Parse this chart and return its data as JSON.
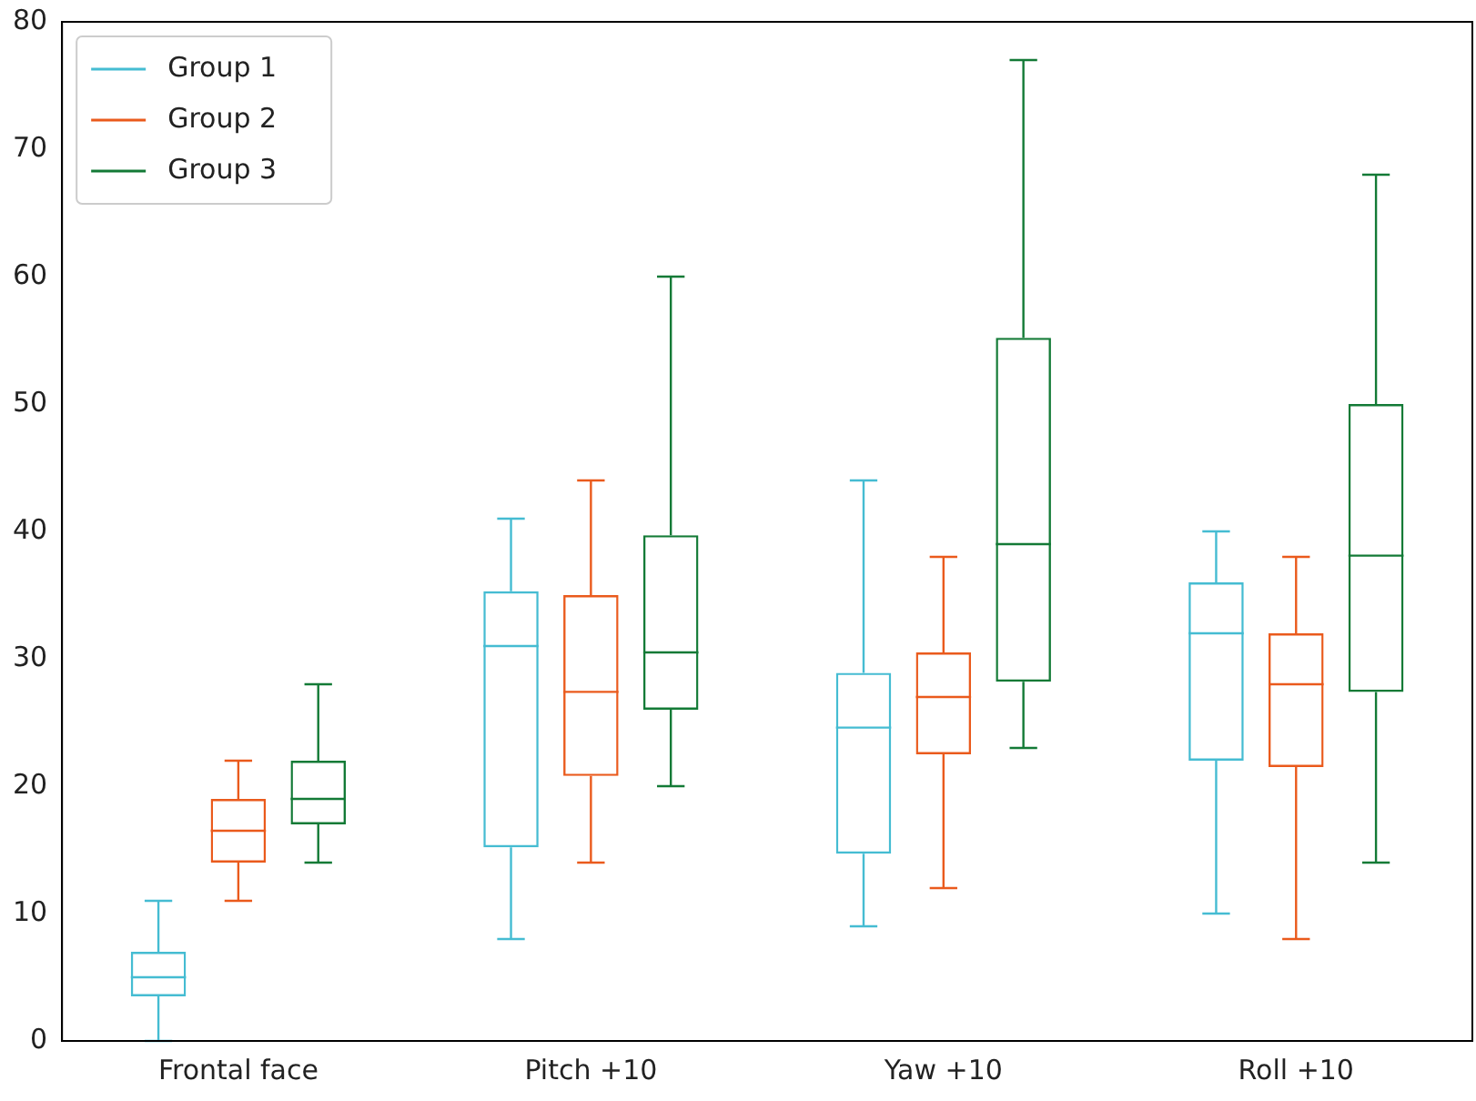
{
  "chart_data": {
    "type": "box",
    "categories": [
      "Frontal face",
      "Pitch +10",
      "Yaw +10",
      "Roll +10"
    ],
    "ylim": [
      0,
      80
    ],
    "yticks": [
      0,
      10,
      20,
      30,
      40,
      50,
      60,
      70,
      80
    ],
    "grid": false,
    "legend": "top left",
    "series": [
      {
        "name": "Group 1",
        "color": "#45bcd2",
        "boxes": [
          {
            "low": 0,
            "q1": 3.5,
            "median": 5,
            "q3": 7,
            "high": 11
          },
          {
            "low": 8,
            "q1": 15.2,
            "median": 31,
            "q3": 35.3,
            "high": 41
          },
          {
            "low": 9,
            "q1": 14.7,
            "median": 24.6,
            "q3": 28.9,
            "high": 44
          },
          {
            "low": 10,
            "q1": 22,
            "median": 32,
            "q3": 36,
            "high": 40
          }
        ]
      },
      {
        "name": "Group 2",
        "color": "#ea5a1c",
        "boxes": [
          {
            "low": 11,
            "q1": 14,
            "median": 16.5,
            "q3": 19,
            "high": 22
          },
          {
            "low": 14,
            "q1": 20.8,
            "median": 27.4,
            "q3": 35,
            "high": 44
          },
          {
            "low": 12,
            "q1": 22.5,
            "median": 27,
            "q3": 30.5,
            "high": 38
          },
          {
            "low": 8,
            "q1": 21.5,
            "median": 28,
            "q3": 32,
            "high": 38
          }
        ]
      },
      {
        "name": "Group 3",
        "color": "#137a36",
        "boxes": [
          {
            "low": 14,
            "q1": 17,
            "median": 19,
            "q3": 22,
            "high": 28
          },
          {
            "low": 20,
            "q1": 26,
            "median": 30.5,
            "q3": 39.7,
            "high": 60
          },
          {
            "low": 23,
            "q1": 28.2,
            "median": 39,
            "q3": 55.2,
            "high": 77
          },
          {
            "low": 14,
            "q1": 27.4,
            "median": 38.1,
            "q3": 50,
            "high": 68
          }
        ]
      }
    ]
  }
}
